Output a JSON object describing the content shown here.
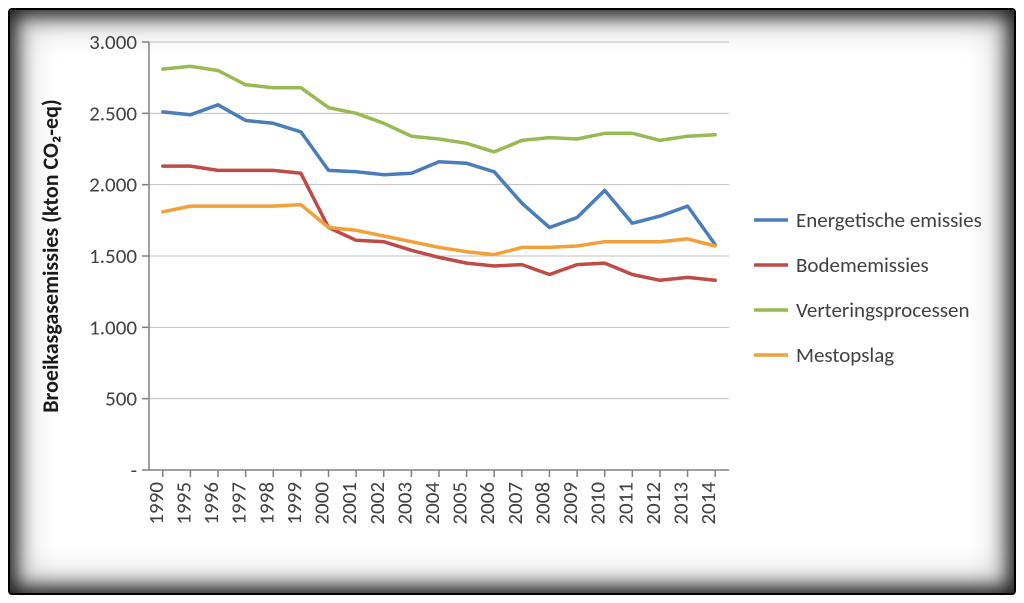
{
  "chart": {
    "type": "line",
    "ylabel": "Broeikasgasemissies (kton CO₂-eq)",
    "background_color": "#ffffff",
    "grid_color": "#bfbfbf",
    "axis_color": "#808080",
    "text_color": "#404040",
    "ylabel_fontsize": 22,
    "tick_fontsize": 21,
    "legend_fontsize": 21,
    "line_width": 3.5,
    "marker": "none",
    "ylim": [
      0,
      3000
    ],
    "ytick_step": 500,
    "ytick_labels": [
      "-",
      "500",
      "1.000",
      "1.500",
      "2.000",
      "2.500",
      "3.000"
    ],
    "categories": [
      "1990",
      "1995",
      "1996",
      "1997",
      "1998",
      "1999",
      "2000",
      "2001",
      "2002",
      "2003",
      "2004",
      "2005",
      "2006",
      "2007",
      "2008",
      "2009",
      "2010",
      "2011",
      "2012",
      "2013",
      "2014"
    ],
    "legend_position": "right",
    "series": [
      {
        "name": "Energetische emissies",
        "color": "#4a7ebb",
        "values": [
          2510,
          2490,
          2560,
          2450,
          2430,
          2370,
          2100,
          2090,
          2070,
          2080,
          2160,
          2150,
          2090,
          1870,
          1700,
          1770,
          1960,
          1730,
          1780,
          1850,
          1580
        ]
      },
      {
        "name": "Bodememissies",
        "color": "#be4b48",
        "values": [
          2130,
          2130,
          2100,
          2100,
          2100,
          2080,
          1700,
          1610,
          1600,
          1540,
          1490,
          1450,
          1430,
          1440,
          1370,
          1440,
          1450,
          1370,
          1330,
          1350,
          1330
        ]
      },
      {
        "name": "Verteringsprocessen",
        "color": "#98b954",
        "values": [
          2810,
          2830,
          2800,
          2700,
          2680,
          2680,
          2540,
          2500,
          2430,
          2340,
          2320,
          2290,
          2230,
          2310,
          2330,
          2320,
          2360,
          2360,
          2310,
          2340,
          2350
        ]
      },
      {
        "name": "Mestopslag",
        "color": "#f1a03a",
        "values": [
          1810,
          1850,
          1850,
          1850,
          1850,
          1860,
          1700,
          1680,
          1640,
          1600,
          1560,
          1530,
          1510,
          1560,
          1560,
          1570,
          1600,
          1600,
          1600,
          1620,
          1570
        ]
      }
    ]
  }
}
